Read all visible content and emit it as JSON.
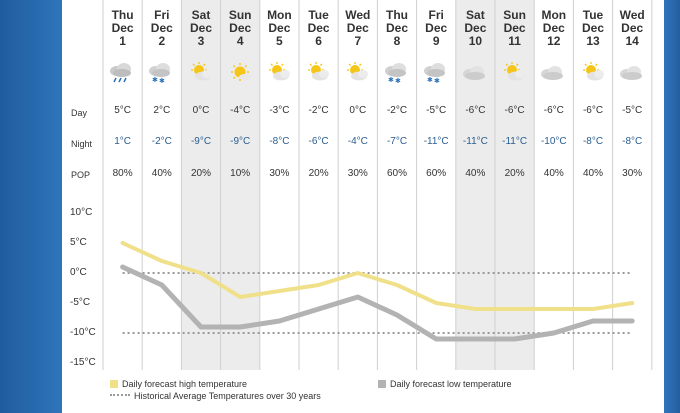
{
  "row_labels": {
    "day": "Day",
    "night": "Night",
    "pop": "POP"
  },
  "chart_data": {
    "type": "line",
    "x_days": [
      {
        "dow": "Thu",
        "mon": "Dec",
        "date": "1"
      },
      {
        "dow": "Fri",
        "mon": "Dec",
        "date": "2"
      },
      {
        "dow": "Sat",
        "mon": "Dec",
        "date": "3"
      },
      {
        "dow": "Sun",
        "mon": "Dec",
        "date": "4"
      },
      {
        "dow": "Mon",
        "mon": "Dec",
        "date": "5"
      },
      {
        "dow": "Tue",
        "mon": "Dec",
        "date": "6"
      },
      {
        "dow": "Wed",
        "mon": "Dec",
        "date": "7"
      },
      {
        "dow": "Thu",
        "mon": "Dec",
        "date": "8"
      },
      {
        "dow": "Fri",
        "mon": "Dec",
        "date": "9"
      },
      {
        "dow": "Sat",
        "mon": "Dec",
        "date": "10"
      },
      {
        "dow": "Sun",
        "mon": "Dec",
        "date": "11"
      },
      {
        "dow": "Mon",
        "mon": "Dec",
        "date": "12"
      },
      {
        "dow": "Tue",
        "mon": "Dec",
        "date": "13"
      },
      {
        "dow": "Wed",
        "mon": "Dec",
        "date": "14"
      }
    ],
    "weekend_days": [
      2,
      3,
      9,
      10
    ],
    "icons": [
      "rain-cloud",
      "snow-cloud",
      "sun-cloud",
      "sun",
      "sun-cloud",
      "sun-cloud",
      "sun-cloud",
      "snow-cloud",
      "snow-cloud",
      "cloud",
      "sun-cloud",
      "cloud",
      "sun-cloud",
      "cloud"
    ],
    "day_labels": [
      "5°C",
      "2°C",
      "0°C",
      "-4°C",
      "-3°C",
      "-2°C",
      "0°C",
      "-2°C",
      "-5°C",
      "-6°C",
      "-6°C",
      "-6°C",
      "-6°C",
      "-5°C"
    ],
    "night_labels": [
      "1°C",
      "-2°C",
      "-9°C",
      "-9°C",
      "-8°C",
      "-6°C",
      "-4°C",
      "-7°C",
      "-11°C",
      "-11°C",
      "-11°C",
      "-10°C",
      "-8°C",
      "-8°C"
    ],
    "pop_labels": [
      "80%",
      "40%",
      "20%",
      "10%",
      "30%",
      "20%",
      "30%",
      "60%",
      "60%",
      "40%",
      "20%",
      "40%",
      "40%",
      "30%"
    ],
    "series": [
      {
        "name": "Daily forecast high temperature",
        "color": "#f0e08a",
        "values": [
          5,
          2,
          0,
          -4,
          -3,
          -2,
          0,
          -2,
          -5,
          -6,
          -6,
          -6,
          -6,
          -5
        ]
      },
      {
        "name": "Daily forecast low temperature",
        "color": "#b3b3b3",
        "values": [
          1,
          -2,
          -9,
          -9,
          -8,
          -6,
          -4,
          -7,
          -11,
          -11,
          -11,
          -10,
          -8,
          -8
        ]
      }
    ],
    "historical": {
      "name": "Historical Average Temperatures over 30 years",
      "color": "#999999",
      "values": [
        0,
        -10
      ]
    },
    "y_ticks": [
      "10°C",
      "5°C",
      "0°C",
      "-5°C",
      "-10°C",
      "-15°C"
    ],
    "y_tick_values": [
      10,
      5,
      0,
      -5,
      -10,
      -15
    ],
    "ylim": [
      -15,
      10
    ]
  }
}
